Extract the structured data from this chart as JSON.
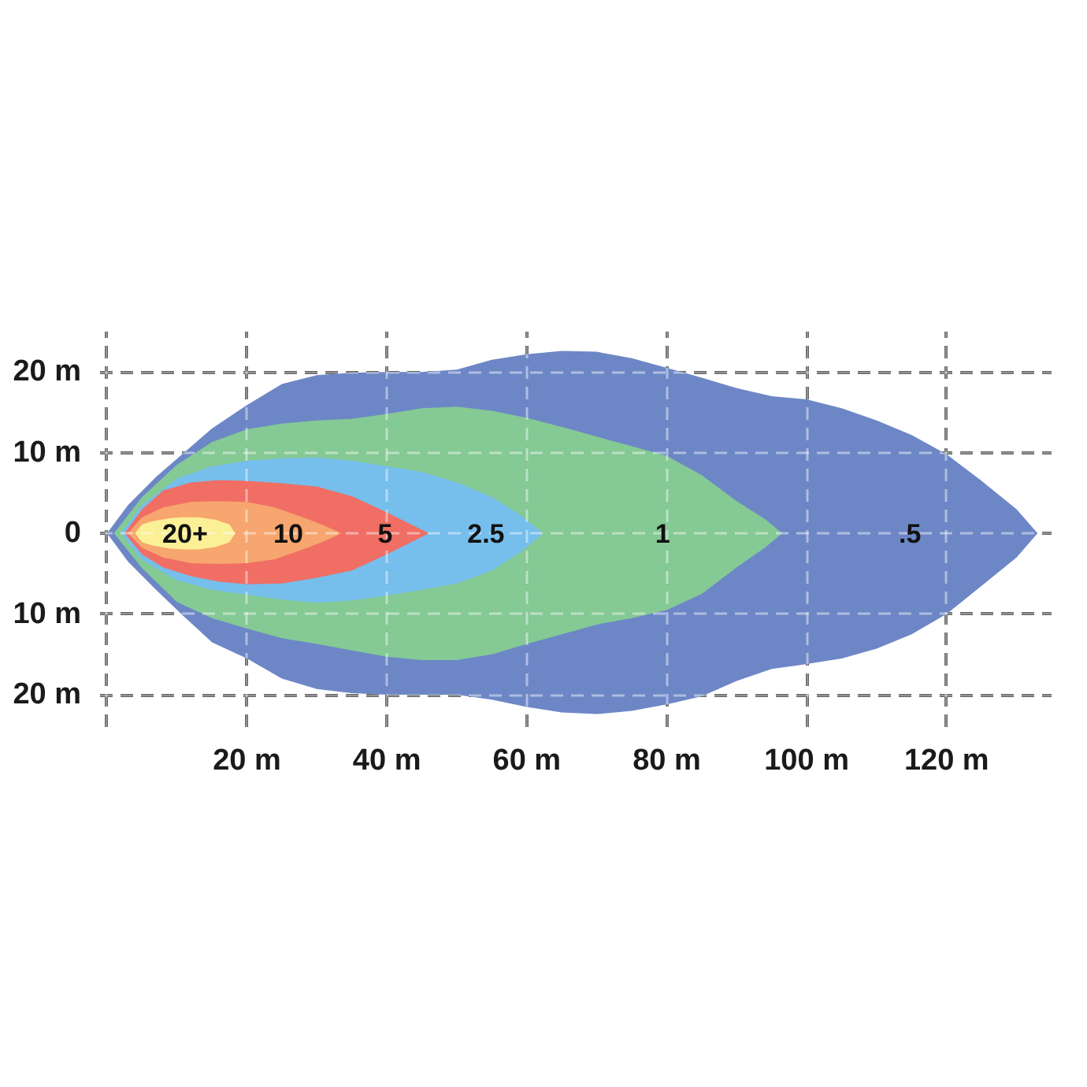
{
  "chart_data": {
    "type": "area",
    "xlim": [
      -1,
      135
    ],
    "ylim": [
      -24,
      25
    ],
    "xticks": [
      {
        "value": 0,
        "label": null
      },
      {
        "value": 20,
        "label": "20 m"
      },
      {
        "value": 40,
        "label": "40 m"
      },
      {
        "value": 60,
        "label": "60 m"
      },
      {
        "value": 80,
        "label": "80 m"
      },
      {
        "value": 100,
        "label": "100 m"
      },
      {
        "value": 120,
        "label": "120 m"
      }
    ],
    "yticks": [
      {
        "value": 20,
        "label": "20 m"
      },
      {
        "value": 10,
        "label": "10 m"
      },
      0,
      {
        "value": -10,
        "label": "10 m"
      },
      {
        "value": -20,
        "label": "20 m"
      }
    ],
    "grid": true,
    "series": [
      {
        "name": ".5",
        "color": "#6d87c6",
        "x": [
          0,
          3,
          7,
          11,
          15,
          20,
          25,
          30,
          35,
          40,
          45,
          50,
          55,
          60,
          65,
          70,
          75,
          80,
          85,
          90,
          95,
          100,
          105,
          110,
          115,
          120,
          125,
          130,
          133
        ],
        "values": [
          0,
          3.5,
          7,
          10,
          13,
          15.9,
          18.5,
          19.6,
          19.9,
          20,
          20,
          20.3,
          21.5,
          22.2,
          22.6,
          22.5,
          21.7,
          20.5,
          19.3,
          18,
          17,
          16.6,
          15.5,
          14,
          12.2,
          9.8,
          6.5,
          3,
          0
        ]
      },
      {
        "color": "#6d87c6",
        "x": [
          0,
          3,
          7,
          11,
          15,
          20,
          25,
          30,
          35,
          40,
          45,
          50,
          55,
          60,
          65,
          70,
          75,
          80,
          85,
          90,
          95,
          100,
          105,
          110,
          115,
          120,
          125,
          130,
          133
        ],
        "values": [
          0,
          -3.5,
          -7,
          -10.3,
          -13.5,
          -15.5,
          -18,
          -19.3,
          -19.8,
          -20,
          -20,
          -20,
          -20.6,
          -21.5,
          -22.2,
          -22.4,
          -22,
          -21.2,
          -20.2,
          -18.3,
          -16.8,
          -16.2,
          -15.5,
          -14.3,
          -12.5,
          -10,
          -6.5,
          -3,
          0
        ]
      },
      {
        "name": "1",
        "color": "#85c995",
        "x": [
          1,
          5,
          10,
          15,
          20,
          25,
          30,
          35,
          40,
          45,
          50,
          55,
          60,
          65,
          70,
          75,
          80,
          85,
          90,
          94,
          96.5
        ],
        "values": [
          0,
          4.5,
          8.5,
          11.3,
          12.9,
          13.6,
          14,
          14.2,
          14.8,
          15.5,
          15.7,
          15.2,
          14.3,
          13.2,
          12,
          10.8,
          9.6,
          7.2,
          4,
          1.8,
          0
        ]
      },
      {
        "color": "#85c995",
        "x": [
          1,
          5,
          10,
          15,
          20,
          25,
          30,
          35,
          40,
          45,
          50,
          55,
          60,
          65,
          70,
          75,
          80,
          85,
          90,
          94,
          96.5
        ],
        "values": [
          0,
          -4.3,
          -8.5,
          -10.5,
          -11.8,
          -13,
          -13.7,
          -14.5,
          -15.3,
          -15.7,
          -15.7,
          -15,
          -13.7,
          -12.5,
          -11.3,
          -10.5,
          -9.5,
          -7.5,
          -4.2,
          -1.8,
          0
        ]
      },
      {
        "name": "2.5",
        "color": "#76beec",
        "x": [
          2,
          5,
          10,
          15,
          20,
          25,
          30,
          35,
          40,
          45,
          50,
          55,
          59,
          62.3
        ],
        "values": [
          0,
          3.5,
          6.8,
          8.3,
          9,
          9.3,
          9.4,
          9,
          8.3,
          7.6,
          6.3,
          4.5,
          2.3,
          0
        ]
      },
      {
        "color": "#76beec",
        "x": [
          2,
          5,
          10,
          15,
          20,
          25,
          30,
          35,
          40,
          45,
          50,
          55,
          59,
          62.3
        ],
        "values": [
          0,
          -3.3,
          -5.8,
          -7,
          -7.6,
          -8.2,
          -8.6,
          -8.3,
          -7.7,
          -7,
          -6.2,
          -4.6,
          -2.4,
          0
        ]
      },
      {
        "name": "5",
        "color": "#f06e64",
        "x": [
          2.5,
          5,
          8,
          12,
          16,
          20,
          25,
          30,
          35,
          40,
          43,
          46
        ],
        "values": [
          0,
          3,
          5.3,
          6.3,
          6.6,
          6.5,
          6.2,
          5.8,
          4.6,
          2.6,
          1.3,
          0
        ]
      },
      {
        "color": "#f06e64",
        "x": [
          2.5,
          5,
          8,
          12,
          16,
          20,
          25,
          30,
          35,
          40,
          43,
          46
        ],
        "values": [
          0,
          -2.6,
          -4.2,
          -5.3,
          -6,
          -6.3,
          -6.2,
          -5.5,
          -4.6,
          -2.6,
          -1.3,
          0
        ]
      },
      {
        "name": "10",
        "color": "#f6a66e",
        "x": [
          3,
          5,
          8,
          12,
          16,
          20,
          24,
          28,
          31,
          33.5
        ],
        "values": [
          0,
          2,
          3.2,
          3.9,
          4,
          3.9,
          3.2,
          2,
          1,
          0
        ]
      },
      {
        "color": "#f6a66e",
        "x": [
          3,
          5,
          8,
          12,
          16,
          20,
          24,
          28,
          31,
          33.5
        ],
        "values": [
          0,
          -1.8,
          -3,
          -3.7,
          -3.8,
          -3.7,
          -3.2,
          -2,
          -1,
          0
        ]
      },
      {
        "name": "20+",
        "color": "#fcf096",
        "x": [
          4,
          5,
          6.5,
          9,
          11,
          13,
          15.5,
          17.5,
          18.3
        ],
        "values": [
          0,
          1.1,
          1.5,
          1.9,
          2,
          2,
          1.7,
          1.1,
          0
        ]
      },
      {
        "color": "#fcf096",
        "x": [
          4,
          5,
          6.5,
          9,
          11,
          13,
          15.5,
          17.5,
          18.3
        ],
        "values": [
          0,
          -1.1,
          -1.5,
          -1.9,
          -2,
          -2,
          -1.7,
          -1.1,
          0
        ]
      }
    ]
  }
}
